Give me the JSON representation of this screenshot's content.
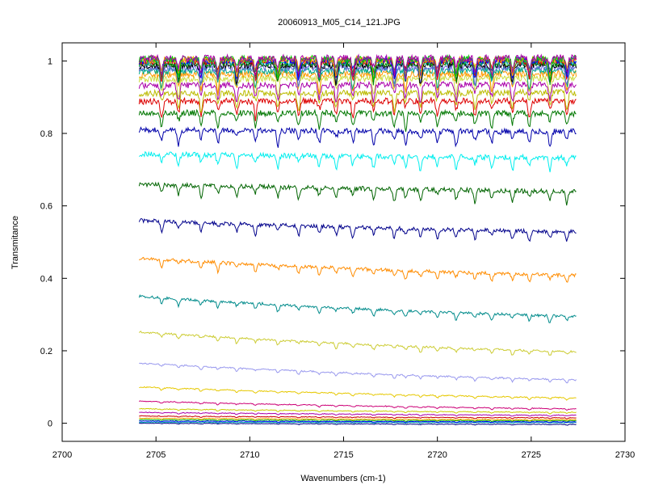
{
  "chart_data": {
    "type": "line",
    "title": "20060913_M05_C14_121.JPG",
    "xlabel": "Wavenumbers (cm-1)",
    "ylabel": "Transmitance",
    "xlim": [
      2700,
      2730
    ],
    "ylim": [
      -0.05,
      1.05
    ],
    "xticks": [
      2700,
      2705,
      2710,
      2715,
      2720,
      2725,
      2730
    ],
    "xtick_labels": [
      "2700",
      "2705",
      "2710",
      "2715",
      "2720",
      "2725",
      "2730"
    ],
    "yticks": [
      0,
      0.2,
      0.4,
      0.6,
      0.8,
      1
    ],
    "ytick_labels": [
      "0",
      "0.2",
      "0.4",
      "0.6",
      "0.8",
      "1"
    ],
    "x_range": [
      2704.1,
      2727.4
    ],
    "absorption_lines": [
      2705.3,
      2706.2,
      2707.4,
      2708.3,
      2709.3,
      2710.3,
      2711.5,
      2712.6,
      2713.7,
      2714.6,
      2715.5,
      2716.6,
      2717.7,
      2718.3,
      2719.1,
      2720.0,
      2721.0,
      2722.0,
      2722.9,
      2724.0,
      2724.9,
      2726.0,
      2726.9
    ],
    "series": [
      {
        "color": "#000080",
        "start": 0.0,
        "end": -0.003
      },
      {
        "color": "#00aaaa",
        "start": 0.003,
        "end": 0.002
      },
      {
        "color": "#0000ff",
        "start": 0.006,
        "end": 0.004
      },
      {
        "color": "#00aa00",
        "start": 0.01,
        "end": 0.007
      },
      {
        "color": "#ffaa00",
        "start": 0.014,
        "end": 0.01
      },
      {
        "color": "#cc0000",
        "start": 0.02,
        "end": 0.015
      },
      {
        "color": "#aa00aa",
        "start": 0.03,
        "end": 0.022
      },
      {
        "color": "#cccc00",
        "start": 0.04,
        "end": 0.03
      },
      {
        "color": "#cc0077",
        "start": 0.061,
        "end": 0.04
      },
      {
        "color": "#e6c800",
        "start": 0.1,
        "end": 0.07
      },
      {
        "color": "#9999ee",
        "start": 0.166,
        "end": 0.12
      },
      {
        "color": "#cccc33",
        "start": 0.252,
        "end": 0.197
      },
      {
        "color": "#008b8b",
        "start": 0.35,
        "end": 0.295
      },
      {
        "color": "#ff8c00",
        "start": 0.455,
        "end": 0.408
      },
      {
        "color": "#00008b",
        "start": 0.56,
        "end": 0.528
      },
      {
        "color": "#006400",
        "start": 0.66,
        "end": 0.64
      },
      {
        "color": "#00eeee",
        "start": 0.743,
        "end": 0.733
      },
      {
        "color": "#0000aa",
        "start": 0.81,
        "end": 0.805
      },
      {
        "color": "#007700",
        "start": 0.857,
        "end": 0.855
      },
      {
        "color": "#dd0000",
        "start": 0.888,
        "end": 0.89
      },
      {
        "color": "#bbbb00",
        "start": 0.91,
        "end": 0.913
      },
      {
        "color": "#aa00aa",
        "start": 0.932,
        "end": 0.935
      },
      {
        "color": "#ccdd44",
        "start": 0.95,
        "end": 0.953
      },
      {
        "color": "#ff9900",
        "start": 0.962,
        "end": 0.965
      },
      {
        "color": "#00aa88",
        "start": 0.972,
        "end": 0.975
      },
      {
        "color": "#6666dd",
        "start": 0.98,
        "end": 0.982
      },
      {
        "color": "#000000",
        "start": 0.987,
        "end": 0.989
      },
      {
        "color": "#008800",
        "start": 0.992,
        "end": 0.994
      },
      {
        "color": "#00aaaa",
        "start": 0.996,
        "end": 0.998
      },
      {
        "color": "#ee0000",
        "start": 0.999,
        "end": 1.0
      },
      {
        "color": "#0000ff",
        "start": 1.001,
        "end": 1.002
      },
      {
        "color": "#ffaa00",
        "start": 1.003,
        "end": 1.004
      },
      {
        "color": "#00cc00",
        "start": 1.005,
        "end": 1.006
      },
      {
        "color": "#aa00aa",
        "start": 1.007,
        "end": 1.008
      }
    ]
  }
}
